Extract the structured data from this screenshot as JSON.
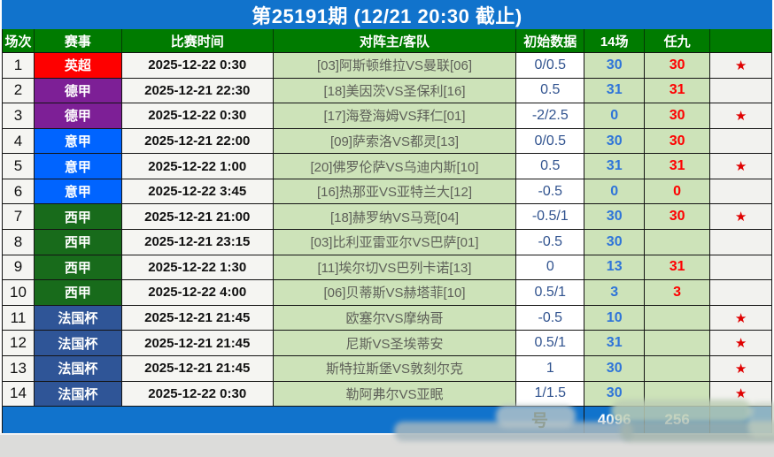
{
  "title": "第25191期 (12/21 20:30 截止)",
  "header": {
    "cols": [
      "场次",
      "赛事",
      "比赛时间",
      "对阵主/客队",
      "初始数据",
      "14场",
      "任九",
      ""
    ]
  },
  "rows": [
    {
      "no": "1",
      "league": "英超",
      "time": "2025-12-22 0:30",
      "match": "[03]阿斯顿维拉VS曼联[06]",
      "odds": "0/0.5",
      "c14": "30",
      "r9": "30",
      "star": true
    },
    {
      "no": "2",
      "league": "德甲",
      "time": "2025-12-21 22:30",
      "match": "[18]美因茨VS圣保利[16]",
      "odds": "0.5",
      "c14": "31",
      "r9": "31",
      "star": false
    },
    {
      "no": "3",
      "league": "德甲",
      "time": "2025-12-22 0:30",
      "match": "[17]海登海姆VS拜仁[01]",
      "odds": "-2/2.5",
      "c14": "0",
      "r9": "30",
      "star": true
    },
    {
      "no": "4",
      "league": "意甲",
      "time": "2025-12-21 22:00",
      "match": "[09]萨索洛VS都灵[13]",
      "odds": "0/0.5",
      "c14": "30",
      "r9": "30",
      "star": false
    },
    {
      "no": "5",
      "league": "意甲",
      "time": "2025-12-22 1:00",
      "match": "[20]佛罗伦萨VS乌迪内斯[10]",
      "odds": "0.5",
      "c14": "31",
      "r9": "31",
      "star": true
    },
    {
      "no": "6",
      "league": "意甲",
      "time": "2025-12-22 3:45",
      "match": "[16]热那亚VS亚特兰大[12]",
      "odds": "-0.5",
      "c14": "0",
      "r9": "0",
      "star": false
    },
    {
      "no": "7",
      "league": "西甲",
      "time": "2025-12-21 21:00",
      "match": "[18]赫罗纳VS马竞[04]",
      "odds": "-0.5/1",
      "c14": "30",
      "r9": "30",
      "star": true
    },
    {
      "no": "8",
      "league": "西甲",
      "time": "2025-12-21 23:15",
      "match": "[03]比利亚雷亚尔VS巴萨[01]",
      "odds": "-0.5",
      "c14": "30",
      "r9": "",
      "star": false
    },
    {
      "no": "9",
      "league": "西甲",
      "time": "2025-12-22 1:30",
      "match": "[11]埃尔切VS巴列卡诺[13]",
      "odds": "0",
      "c14": "13",
      "r9": "31",
      "star": false
    },
    {
      "no": "10",
      "league": "西甲",
      "time": "2025-12-22 4:00",
      "match": "[06]贝蒂斯VS赫塔菲[10]",
      "odds": "0.5/1",
      "c14": "3",
      "r9": "3",
      "star": false
    },
    {
      "no": "11",
      "league": "法国杯",
      "time": "2025-12-21 21:45",
      "match": "欧塞尔VS摩纳哥",
      "odds": "-0.5",
      "c14": "10",
      "r9": "",
      "star": true
    },
    {
      "no": "12",
      "league": "法国杯",
      "time": "2025-12-21 21:45",
      "match": "尼斯VS圣埃蒂安",
      "odds": "0.5/1",
      "c14": "31",
      "r9": "",
      "star": true
    },
    {
      "no": "13",
      "league": "法国杯",
      "time": "2025-12-21 21:45",
      "match": "斯特拉斯堡VS敦刻尔克",
      "odds": "1",
      "c14": "30",
      "r9": "",
      "star": true
    },
    {
      "no": "14",
      "league": "法国杯",
      "time": "2025-12-22 0:30",
      "match": "勒阿弗尔VS亚眠",
      "odds": "1/1.5",
      "c14": "30",
      "r9": "",
      "star": true
    }
  ],
  "footer": {
    "total14": "4096",
    "total9": "256"
  },
  "watermark": {
    "visible_text": "号"
  },
  "star_glyph": "★",
  "colors": {
    "title_bg": "#1173CC",
    "header_bg": "#007B00",
    "footer_bg": "#1173CC",
    "team_cell_bg": "#CDE3B9",
    "odds_text": "#31538F",
    "count14_text": "#2E74D9",
    "ren9_text": "#FE0000",
    "star": "#E00000",
    "league": {
      "英超": "#FE0000",
      "德甲": "#7D1F96",
      "意甲": "#0064FF",
      "西甲": "#186B1B",
      "法国杯": "#2F5597"
    }
  }
}
